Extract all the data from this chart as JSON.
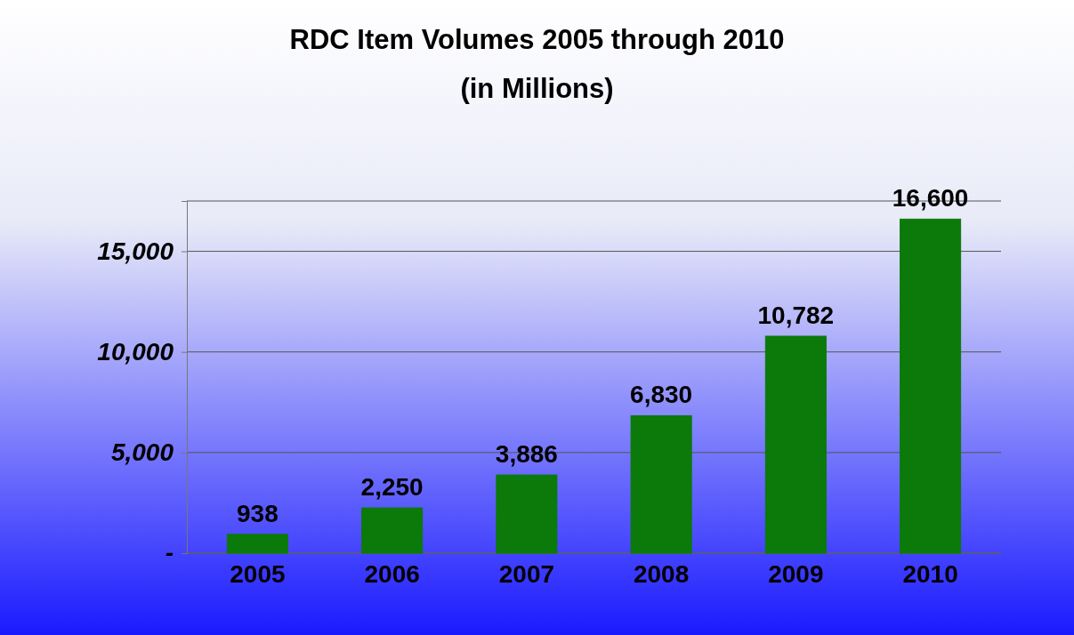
{
  "chart_data": {
    "type": "bar",
    "title": "RDC Item Volumes 2005 through 2010",
    "subtitle": "(in Millions)",
    "categories": [
      "2005",
      "2006",
      "2007",
      "2008",
      "2009",
      "2010"
    ],
    "values": [
      938,
      2250,
      3886,
      6830,
      10782,
      16600
    ],
    "value_labels": [
      "938",
      "2,250",
      "3,886",
      "6,830",
      "10,782",
      "16,600"
    ],
    "color": "#0b7a0b",
    "ylim": [
      0,
      17500
    ],
    "yticks": [
      {
        "value": 0,
        "label": "-"
      },
      {
        "value": 5000,
        "label": "5,000"
      },
      {
        "value": 10000,
        "label": "10,000"
      },
      {
        "value": 15000,
        "label": "15,000"
      }
    ],
    "grid": "y"
  }
}
